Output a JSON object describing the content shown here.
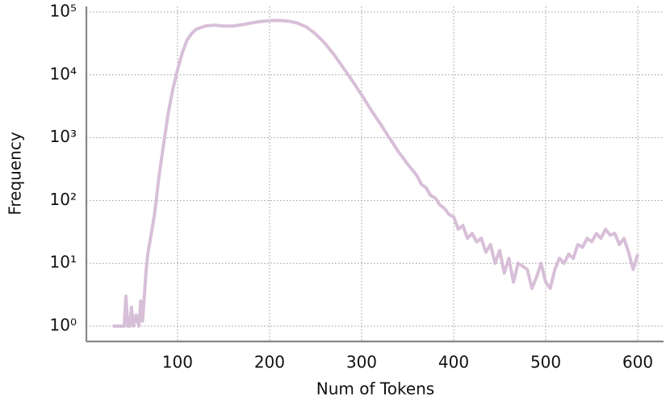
{
  "chart_data": {
    "type": "line",
    "x_label": "Num of Tokens",
    "y_label": "Frequency",
    "log_y": true,
    "grid": true,
    "xlim": [
      1,
      628
    ],
    "ylim": [
      0.57,
      123000
    ],
    "xticks": [
      100,
      200,
      300,
      400,
      500,
      600
    ],
    "yticks": [
      {
        "value": 1,
        "label": "10⁰"
      },
      {
        "value": 10,
        "label": "10¹"
      },
      {
        "value": 100,
        "label": "10²"
      },
      {
        "value": 1000,
        "label": "10³"
      },
      {
        "value": 10000,
        "label": "10⁴"
      },
      {
        "value": 100000,
        "label": "10⁵"
      }
    ],
    "series": [
      {
        "name": "Frequency",
        "color": "#d8bfd8",
        "x": [
          30,
          35,
          40,
          42,
          44,
          46,
          48,
          50,
          52,
          55,
          58,
          60,
          62,
          64,
          66,
          68,
          70,
          75,
          80,
          85,
          90,
          95,
          100,
          105,
          110,
          115,
          120,
          130,
          140,
          150,
          160,
          170,
          180,
          190,
          200,
          210,
          220,
          230,
          240,
          250,
          260,
          270,
          280,
          290,
          300,
          310,
          320,
          330,
          340,
          350,
          360,
          365,
          370,
          375,
          380,
          385,
          390,
          395,
          400,
          405,
          410,
          415,
          420,
          425,
          430,
          435,
          440,
          445,
          450,
          455,
          460,
          465,
          470,
          475,
          480,
          485,
          490,
          495,
          500,
          505,
          510,
          515,
          520,
          525,
          530,
          535,
          540,
          545,
          550,
          555,
          560,
          565,
          570,
          575,
          580,
          585,
          590,
          595,
          600
        ],
        "values": [
          1,
          1,
          1,
          1,
          3,
          1,
          1,
          2,
          1,
          1.5,
          1,
          2.5,
          1.2,
          3,
          8,
          15,
          22,
          60,
          250,
          800,
          2500,
          6000,
          12000,
          22000,
          35000,
          45000,
          53000,
          60000,
          62000,
          60000,
          60000,
          63000,
          67000,
          71000,
          73000,
          74000,
          72000,
          67000,
          58000,
          45000,
          32000,
          21000,
          13000,
          8000,
          4800,
          2800,
          1700,
          1000,
          600,
          380,
          250,
          180,
          160,
          120,
          110,
          85,
          75,
          60,
          55,
          35,
          40,
          25,
          30,
          22,
          25,
          15,
          20,
          10,
          16,
          7,
          12,
          5,
          10,
          9,
          8,
          4,
          6,
          10,
          5,
          4,
          8,
          12,
          10,
          14,
          12,
          20,
          18,
          25,
          22,
          30,
          25,
          35,
          28,
          30,
          20,
          25,
          15,
          8,
          14
        ]
      }
    ]
  }
}
